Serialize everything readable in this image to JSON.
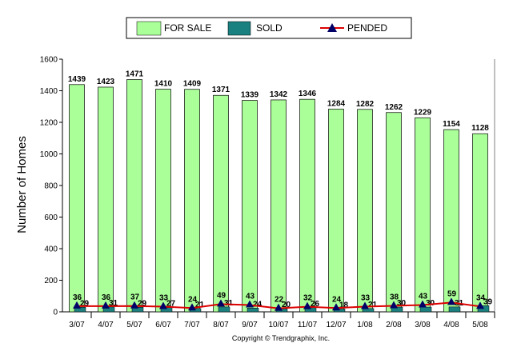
{
  "chart_data": {
    "type": "bar",
    "categories": [
      "3/07",
      "4/07",
      "5/07",
      "6/07",
      "7/07",
      "8/07",
      "9/07",
      "10/07",
      "11/07",
      "12/07",
      "1/08",
      "2/08",
      "3/08",
      "4/08",
      "5/08"
    ],
    "series": [
      {
        "name": "FOR SALE",
        "type": "bar",
        "color": "#aaff99",
        "values": [
          1439,
          1423,
          1471,
          1410,
          1409,
          1371,
          1339,
          1342,
          1346,
          1284,
          1282,
          1262,
          1229,
          1154,
          1128
        ]
      },
      {
        "name": "SOLD",
        "type": "bar",
        "color": "#1a8080",
        "values": [
          29,
          31,
          29,
          27,
          21,
          31,
          24,
          20,
          26,
          18,
          21,
          30,
          30,
          31,
          39
        ]
      },
      {
        "name": "PENDED",
        "type": "line",
        "color": "#dd0000",
        "marker_color": "#000066",
        "values": [
          36,
          36,
          37,
          33,
          24,
          49,
          43,
          22,
          32,
          24,
          33,
          38,
          43,
          59,
          34
        ]
      }
    ],
    "ylabel": "Number of Homes",
    "ylim": [
      0,
      1600
    ],
    "yticks": [
      0,
      200,
      400,
      600,
      800,
      1000,
      1200,
      1400,
      1600
    ],
    "grid": false,
    "legend_position": "top-center"
  },
  "footer": {
    "copyright": "Copyright © Trendgraphix, Inc."
  }
}
